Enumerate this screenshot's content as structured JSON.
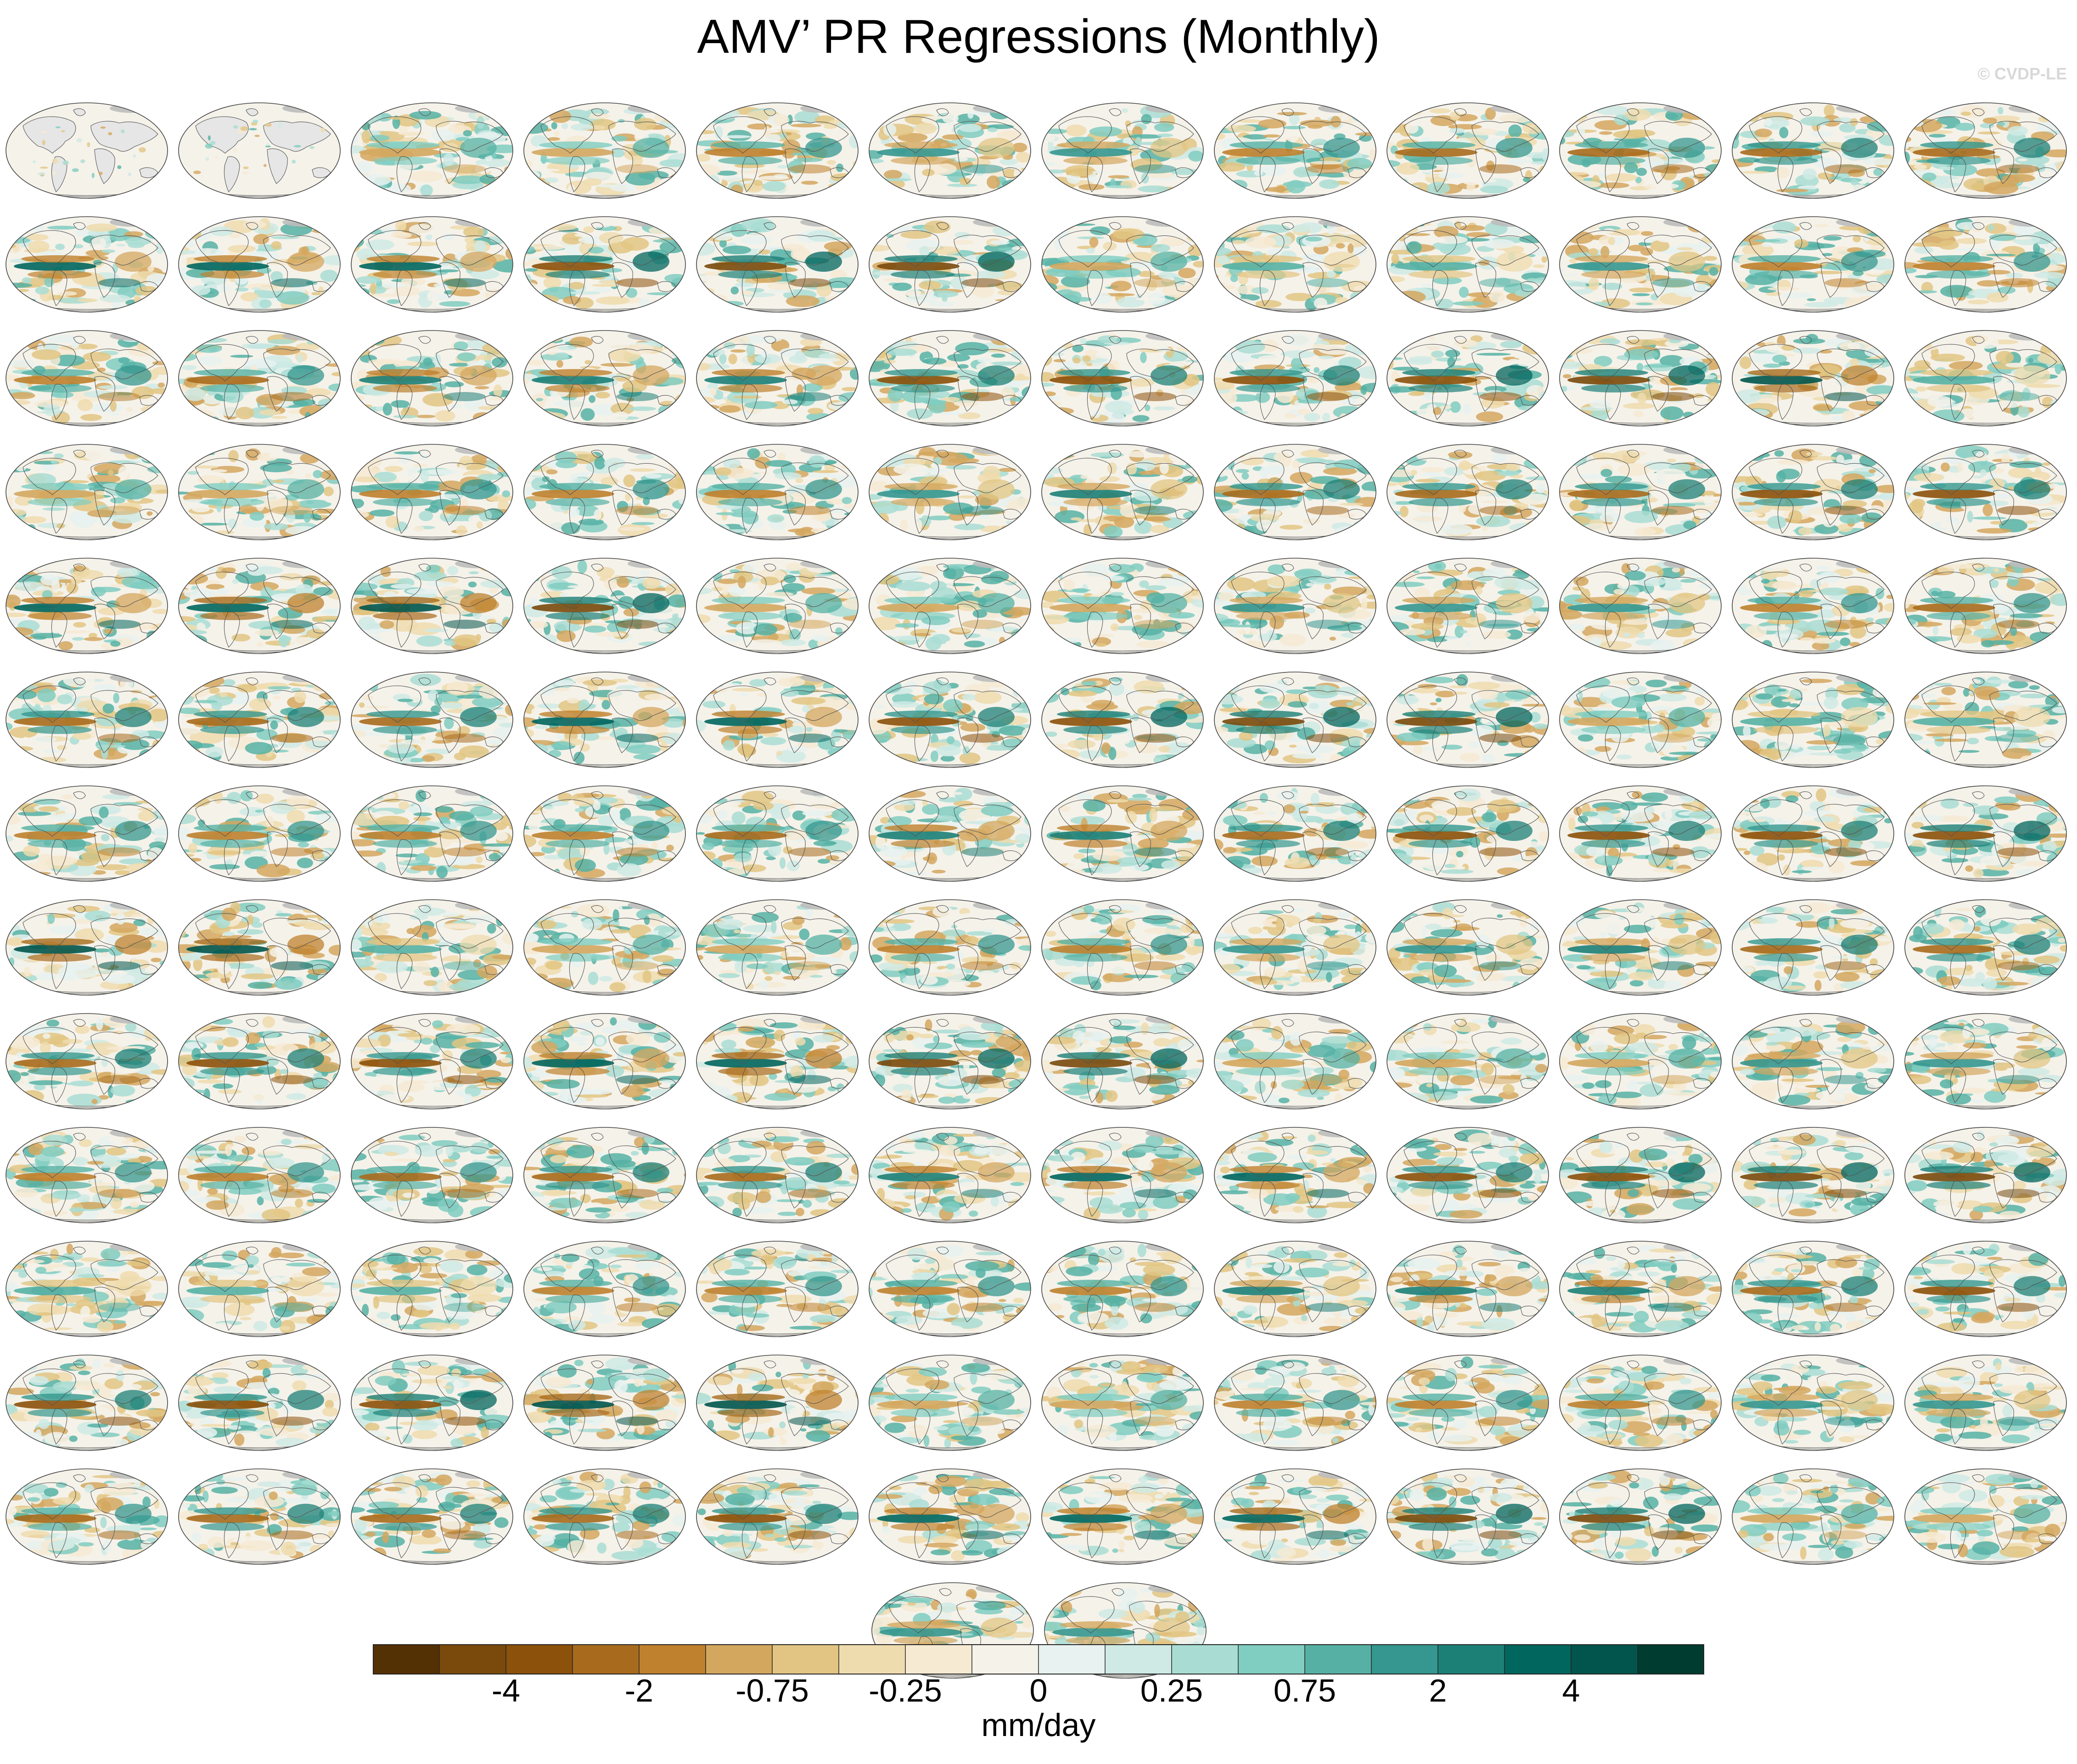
{
  "title": "AMV’ PR Regressions (Monthly)",
  "watermark": "© CVDP-LE",
  "colors": {
    "land": "#e6e6e6",
    "levels": [
      "#543005",
      "#7a4a0c",
      "#8c510a",
      "#a86b1d",
      "#bf812d",
      "#d4a75f",
      "#e2c583",
      "#efdcae",
      "#f6ead3",
      "#f5f2ea",
      "#e8f2f0",
      "#cfeae5",
      "#a9ddd3",
      "#80cdc1",
      "#56b1a4",
      "#35978f",
      "#1d8077",
      "#01665e",
      "#01554c",
      "#003c30"
    ],
    "title_ensemble": [
      "#000000",
      "#2a7fb0",
      "#5a8fc0",
      "#808080",
      "#999999",
      "#a02020",
      "#6a4fb0",
      "#c99866"
    ]
  },
  "colorbar": {
    "labels": [
      "-4",
      "-2",
      "-0.75",
      "-0.25",
      "0",
      "0.25",
      "0.75",
      "2",
      "4"
    ],
    "units": "mm/day"
  },
  "panels": [
    {
      "label": "",
      "period": "",
      "r": ""
    },
    {
      "label": "",
      "period": "",
      "r": ""
    },
    {
      "label": "",
      "period": "",
      "r": ""
    },
    {
      "label": "",
      "period": "",
      "r": ""
    },
    {
      "label": "",
      "period": "",
      "r": ""
    },
    {
      "label": "",
      "period": "",
      "r": ""
    },
    {
      "label": "",
      "period": "",
      "r": ""
    },
    {
      "label": "",
      "period": "",
      "r": ""
    },
    {
      "label": "",
      "period": "",
      "r": ""
    },
    {
      "label": "",
      "period": "",
      "r": ""
    },
    {
      "label": "",
      "period": "",
      "r": ""
    },
    {
      "label": "",
      "period": "",
      "r": ""
    },
    {
      "label": "",
      "period": "",
      "r": ""
    },
    {
      "label": "",
      "period": "",
      "r": ""
    },
    {
      "label": "",
      "period": "",
      "r": ""
    },
    {
      "label": "",
      "period": "",
      "r": ""
    },
    {
      "label": "",
      "period": "",
      "r": ""
    },
    {
      "label": "",
      "period": "",
      "r": ""
    },
    {
      "label": "",
      "period": "",
      "r": ""
    },
    {
      "label": "",
      "period": "",
      "r": ""
    },
    {
      "label": "",
      "period": "",
      "r": ""
    },
    {
      "label": "",
      "period": "",
      "r": ""
    },
    {
      "label": "",
      "period": "",
      "r": ""
    },
    {
      "label": "",
      "period": "",
      "r": ""
    },
    {
      "label": "",
      "period": "",
      "r": ""
    },
    {
      "label": "",
      "period": "",
      "r": ""
    },
    {
      "label": "",
      "period": "",
      "r": ""
    },
    {
      "label": "",
      "period": "",
      "r": ""
    },
    {
      "label": "",
      "period": "",
      "r": ""
    },
    {
      "label": "",
      "period": "",
      "r": ""
    },
    {
      "label": "",
      "period": "",
      "r": ""
    },
    {
      "label": "",
      "period": "",
      "r": ""
    },
    {
      "label": "",
      "period": "",
      "r": ""
    },
    {
      "label": "",
      "period": "",
      "r": ""
    },
    {
      "label": "",
      "period": "",
      "r": ""
    },
    {
      "label": "",
      "period": "",
      "r": ""
    },
    {
      "label": "",
      "period": "",
      "r": ""
    },
    {
      "label": "",
      "period": "",
      "r": ""
    },
    {
      "label": "",
      "period": "",
      "r": ""
    },
    {
      "label": "",
      "period": "",
      "r": ""
    },
    {
      "label": "",
      "period": "",
      "r": ""
    },
    {
      "label": "",
      "period": "",
      "r": ""
    },
    {
      "label": "",
      "period": "",
      "r": ""
    },
    {
      "label": "",
      "period": "",
      "r": ""
    },
    {
      "label": "",
      "period": "",
      "r": ""
    },
    {
      "label": "",
      "period": "",
      "r": ""
    },
    {
      "label": "",
      "period": "",
      "r": ""
    },
    {
      "label": "",
      "period": "",
      "r": ""
    },
    {
      "label": "",
      "period": "",
      "r": ""
    },
    {
      "label": "",
      "period": "",
      "r": ""
    },
    {
      "label": "",
      "period": "",
      "r": ""
    },
    {
      "label": "",
      "period": "",
      "r": ""
    },
    {
      "label": "",
      "period": "",
      "r": ""
    },
    {
      "label": "",
      "period": "",
      "r": ""
    },
    {
      "label": "",
      "period": "",
      "r": ""
    },
    {
      "label": "",
      "period": "",
      "r": ""
    },
    {
      "label": "",
      "period": "",
      "r": ""
    },
    {
      "label": "",
      "period": "",
      "r": ""
    },
    {
      "label": "",
      "period": "",
      "r": ""
    },
    {
      "label": "",
      "period": "",
      "r": ""
    },
    {
      "label": "",
      "period": "",
      "r": ""
    },
    {
      "label": "",
      "period": "",
      "r": ""
    },
    {
      "label": "",
      "period": "",
      "r": ""
    },
    {
      "label": "",
      "period": "",
      "r": ""
    },
    {
      "label": "",
      "period": "",
      "r": ""
    },
    {
      "label": "",
      "period": "",
      "r": ""
    },
    {
      "label": "",
      "period": "",
      "r": ""
    },
    {
      "label": "",
      "period": "",
      "r": ""
    },
    {
      "label": "",
      "period": "",
      "r": ""
    },
    {
      "label": "",
      "period": "",
      "r": ""
    },
    {
      "label": "",
      "period": "",
      "r": ""
    },
    {
      "label": "",
      "period": "",
      "r": ""
    },
    {
      "label": "",
      "period": "",
      "r": ""
    },
    {
      "label": "",
      "period": "",
      "r": ""
    },
    {
      "label": "",
      "period": "",
      "r": ""
    },
    {
      "label": "",
      "period": "",
      "r": ""
    },
    {
      "label": "",
      "period": "",
      "r": ""
    },
    {
      "label": "",
      "period": "",
      "r": ""
    },
    {
      "label": "",
      "period": "",
      "r": ""
    },
    {
      "label": "",
      "period": "",
      "r": ""
    },
    {
      "label": "",
      "period": "",
      "r": ""
    },
    {
      "label": "",
      "period": "",
      "r": ""
    },
    {
      "label": "",
      "period": "",
      "r": ""
    },
    {
      "label": "",
      "period": "",
      "r": ""
    },
    {
      "label": "",
      "period": "",
      "r": ""
    },
    {
      "label": "",
      "period": "",
      "r": ""
    },
    {
      "label": "",
      "period": "",
      "r": ""
    },
    {
      "label": "",
      "period": "",
      "r": ""
    },
    {
      "label": "",
      "period": "",
      "r": ""
    },
    {
      "label": "",
      "period": "",
      "r": ""
    },
    {
      "label": "",
      "period": "",
      "r": ""
    },
    {
      "label": "",
      "period": "",
      "r": ""
    },
    {
      "label": "",
      "period": "",
      "r": ""
    },
    {
      "label": "",
      "period": "",
      "r": ""
    },
    {
      "label": "",
      "period": "",
      "r": ""
    },
    {
      "label": "",
      "period": "",
      "r": ""
    },
    {
      "label": "",
      "period": "",
      "r": ""
    },
    {
      "label": "",
      "period": "",
      "r": ""
    },
    {
      "label": "",
      "period": "",
      "r": ""
    },
    {
      "label": "",
      "period": "",
      "r": ""
    },
    {
      "label": "",
      "period": "",
      "r": ""
    },
    {
      "label": "",
      "period": "",
      "r": ""
    },
    {
      "label": "",
      "period": "",
      "r": ""
    },
    {
      "label": "",
      "period": "",
      "r": ""
    },
    {
      "label": "",
      "period": "",
      "r": ""
    },
    {
      "label": "",
      "period": "",
      "r": ""
    },
    {
      "label": "",
      "period": "",
      "r": ""
    },
    {
      "label": "",
      "period": "",
      "r": ""
    },
    {
      "label": "",
      "period": "",
      "r": ""
    },
    {
      "label": "",
      "period": "",
      "r": ""
    },
    {
      "label": "",
      "period": "",
      "r": ""
    },
    {
      "label": "",
      "period": "",
      "r": ""
    },
    {
      "label": "",
      "period": "",
      "r": ""
    },
    {
      "label": "",
      "period": "",
      "r": ""
    },
    {
      "label": "",
      "period": "",
      "r": ""
    },
    {
      "label": "",
      "period": "",
      "r": ""
    },
    {
      "label": "",
      "period": "",
      "r": ""
    },
    {
      "label": "",
      "period": "",
      "r": ""
    },
    {
      "label": "",
      "period": "",
      "r": ""
    },
    {
      "label": "",
      "period": "",
      "r": ""
    },
    {
      "label": "",
      "period": "",
      "r": ""
    },
    {
      "label": "",
      "period": "",
      "r": ""
    },
    {
      "label": "",
      "period": "",
      "r": ""
    },
    {
      "label": "",
      "period": "",
      "r": ""
    },
    {
      "label": "",
      "period": "",
      "r": ""
    },
    {
      "label": "",
      "period": "",
      "r": ""
    },
    {
      "label": "",
      "period": "",
      "r": ""
    },
    {
      "label": "",
      "period": "",
      "r": ""
    },
    {
      "label": "",
      "period": "",
      "r": ""
    },
    {
      "label": "",
      "period": "",
      "r": ""
    },
    {
      "label": "",
      "period": "",
      "r": ""
    },
    {
      "label": "",
      "period": "",
      "r": ""
    },
    {
      "label": "",
      "period": "",
      "r": ""
    },
    {
      "label": "",
      "period": "",
      "r": ""
    },
    {
      "label": "",
      "period": "",
      "r": ""
    },
    {
      "label": "",
      "period": "",
      "r": ""
    },
    {
      "label": "",
      "period": "",
      "r": ""
    },
    {
      "label": "",
      "period": "",
      "r": ""
    },
    {
      "label": "",
      "period": "",
      "r": ""
    },
    {
      "label": "",
      "period": "",
      "r": ""
    },
    {
      "label": "",
      "period": "",
      "r": ""
    },
    {
      "label": "",
      "period": "",
      "r": ""
    },
    {
      "label": "",
      "period": "",
      "r": ""
    },
    {
      "label": "",
      "period": "",
      "r": ""
    },
    {
      "label": "",
      "period": "",
      "r": ""
    },
    {
      "label": "",
      "period": "",
      "r": ""
    },
    {
      "label": "",
      "period": "",
      "r": ""
    },
    {
      "label": "",
      "period": "",
      "r": ""
    },
    {
      "label": "",
      "period": "",
      "r": ""
    },
    {
      "label": "",
      "period": "",
      "r": ""
    },
    {
      "label": "",
      "period": "",
      "r": ""
    },
    {
      "label": "",
      "period": "",
      "r": ""
    },
    {
      "label": "",
      "period": "",
      "r": ""
    },
    {
      "label": "",
      "period": "",
      "r": ""
    },
    {
      "label": "",
      "period": "",
      "r": ""
    },
    {
      "label": "",
      "period": "",
      "r": ""
    },
    {
      "label": "",
      "period": "",
      "r": ""
    },
    {
      "label": "",
      "period": "",
      "r": ""
    }
  ]
}
